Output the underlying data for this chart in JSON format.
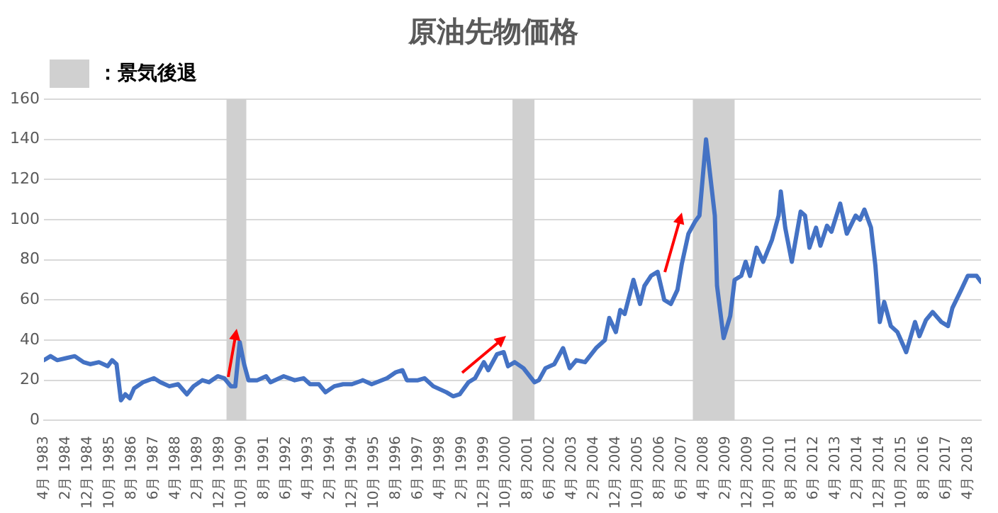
{
  "chart_data": {
    "type": "line",
    "title": "原油先物価格",
    "x": [
      "1983-04",
      "1983-07",
      "1983-10",
      "1984-02",
      "1984-06",
      "1984-10",
      "1985-01",
      "1985-05",
      "1985-09",
      "1985-11",
      "1986-01",
      "1986-03",
      "1986-05",
      "1986-07",
      "1986-09",
      "1987-01",
      "1987-06",
      "1987-09",
      "1988-01",
      "1988-05",
      "1988-09",
      "1988-12",
      "1989-04",
      "1989-07",
      "1989-11",
      "1990-02",
      "1990-05",
      "1990-07",
      "1990-09",
      "1990-11",
      "1991-01",
      "1991-05",
      "1991-09",
      "1991-11",
      "1992-05",
      "1992-10",
      "1993-02",
      "1993-05",
      "1993-09",
      "1993-12",
      "1994-04",
      "1994-08",
      "1994-12",
      "1995-05",
      "1995-09",
      "1996-04",
      "1996-08",
      "1996-11",
      "1997-01",
      "1997-06",
      "1997-09",
      "1998-01",
      "1998-07",
      "1998-10",
      "1999-01",
      "1999-05",
      "1999-08",
      "1999-12",
      "2000-02",
      "2000-06",
      "2000-09",
      "2000-11",
      "2001-02",
      "2001-06",
      "2001-11",
      "2002-01",
      "2002-04",
      "2002-08",
      "2002-12",
      "2003-03",
      "2003-06",
      "2003-10",
      "2004-03",
      "2004-07",
      "2004-09",
      "2004-12",
      "2005-02",
      "2005-04",
      "2005-08",
      "2005-11",
      "2006-01",
      "2006-04",
      "2006-07",
      "2006-10",
      "2007-01",
      "2007-04",
      "2007-06",
      "2007-09",
      "2007-12",
      "2008-02",
      "2008-05",
      "2008-09",
      "2008-10",
      "2009-01",
      "2009-04",
      "2009-06",
      "2009-09",
      "2009-11",
      "2010-01",
      "2010-04",
      "2010-07",
      "2010-11",
      "2011-02",
      "2011-03",
      "2011-05",
      "2011-08",
      "2011-12",
      "2012-02",
      "2012-04",
      "2012-07",
      "2012-09",
      "2012-12",
      "2013-02",
      "2013-06",
      "2013-09",
      "2014-01",
      "2014-03",
      "2014-05",
      "2014-08",
      "2014-10",
      "2014-12",
      "2015-02",
      "2015-05",
      "2015-08",
      "2015-12",
      "2016-04",
      "2016-06",
      "2016-09",
      "2016-12",
      "2017-04",
      "2017-07",
      "2017-09",
      "2018-01",
      "2018-04",
      "2018-06",
      "2018-08",
      "2018-10"
    ],
    "series": [
      {
        "color": "#4472c4",
        "values": [
          30,
          32,
          30,
          31,
          32,
          29,
          28,
          29,
          27,
          30,
          28,
          10,
          13,
          11,
          16,
          19,
          21,
          19,
          17,
          18,
          13,
          17,
          20,
          19,
          22,
          21,
          17,
          17,
          39,
          28,
          20,
          20,
          22,
          19,
          22,
          20,
          21,
          18,
          18,
          14,
          17,
          18,
          18,
          20,
          18,
          21,
          24,
          25,
          20,
          20,
          21,
          17,
          14,
          12,
          13,
          19,
          21,
          29,
          25,
          33,
          34,
          27,
          29,
          26,
          19,
          20,
          26,
          28,
          36,
          26,
          30,
          29,
          36,
          40,
          51,
          44,
          55,
          53,
          70,
          58,
          67,
          72,
          74,
          60,
          58,
          65,
          78,
          93,
          99,
          102,
          140,
          102,
          67,
          41,
          52,
          70,
          72,
          79,
          72,
          86,
          79,
          90,
          102,
          114,
          96,
          79,
          104,
          102,
          86,
          96,
          87,
          97,
          94,
          108,
          93,
          102,
          100,
          105,
          96,
          77,
          49,
          59,
          47,
          44,
          34,
          49,
          42,
          50,
          54,
          49,
          47,
          56,
          65,
          72,
          72,
          72,
          69
        ]
      }
    ],
    "xlim": [
      "1983-04",
      "2018-10"
    ],
    "xticks": [
      {
        "value": "1983-04",
        "label": "4月 1983"
      },
      {
        "value": "1984-02",
        "label": "2月 1984"
      },
      {
        "value": "1984-12",
        "label": "12月 1984"
      },
      {
        "value": "1985-10",
        "label": "10月 1985"
      },
      {
        "value": "1986-08",
        "label": "8月 1986"
      },
      {
        "value": "1987-06",
        "label": "6月 1987"
      },
      {
        "value": "1988-04",
        "label": "4月 1988"
      },
      {
        "value": "1989-02",
        "label": "2月 1989"
      },
      {
        "value": "1989-12",
        "label": "12月 1989"
      },
      {
        "value": "1990-10",
        "label": "10月 1990"
      },
      {
        "value": "1991-08",
        "label": "8月 1991"
      },
      {
        "value": "1992-06",
        "label": "6月 1992"
      },
      {
        "value": "1993-04",
        "label": "4月 1993"
      },
      {
        "value": "1994-02",
        "label": "2月 1994"
      },
      {
        "value": "1994-12",
        "label": "12月 1994"
      },
      {
        "value": "1995-10",
        "label": "10月 1995"
      },
      {
        "value": "1996-08",
        "label": "8月 1996"
      },
      {
        "value": "1997-06",
        "label": "6月 1997"
      },
      {
        "value": "1998-04",
        "label": "4月 1998"
      },
      {
        "value": "1999-02",
        "label": "2月 1999"
      },
      {
        "value": "1999-12",
        "label": "12月 1999"
      },
      {
        "value": "2000-10",
        "label": "10月 2000"
      },
      {
        "value": "2001-08",
        "label": "8月 2001"
      },
      {
        "value": "2002-06",
        "label": "6月 2002"
      },
      {
        "value": "2003-04",
        "label": "4月 2003"
      },
      {
        "value": "2004-02",
        "label": "2月 2004"
      },
      {
        "value": "2004-12",
        "label": "12月 2004"
      },
      {
        "value": "2005-10",
        "label": "10月 2005"
      },
      {
        "value": "2006-08",
        "label": "8月 2006"
      },
      {
        "value": "2007-06",
        "label": "6月 2007"
      },
      {
        "value": "2008-04",
        "label": "4月 2008"
      },
      {
        "value": "2009-02",
        "label": "2月 2009"
      },
      {
        "value": "2009-12",
        "label": "12月 2009"
      },
      {
        "value": "2010-10",
        "label": "10月 2010"
      },
      {
        "value": "2011-08",
        "label": "8月 2011"
      },
      {
        "value": "2012-06",
        "label": "6月 2012"
      },
      {
        "value": "2013-04",
        "label": "4月 2013"
      },
      {
        "value": "2014-02",
        "label": "2月 2014"
      },
      {
        "value": "2014-12",
        "label": "12月 2014"
      },
      {
        "value": "2015-10",
        "label": "10月 2015"
      },
      {
        "value": "2016-08",
        "label": "8月 2016"
      },
      {
        "value": "2017-06",
        "label": "6月 2017"
      },
      {
        "value": "2018-04",
        "label": "4月 2018"
      }
    ],
    "ylim": [
      0,
      160
    ],
    "yticks": [
      0,
      20,
      40,
      60,
      80,
      100,
      120,
      140,
      160
    ],
    "bands": [
      {
        "axis": "x",
        "from": "1990-03",
        "to": "1990-12",
        "color": "#d0d0d0",
        "label": "：景気後退"
      },
      {
        "axis": "x",
        "from": "2001-01",
        "to": "2001-11",
        "color": "#d0d0d0"
      },
      {
        "axis": "x",
        "from": "2007-11",
        "to": "2009-06",
        "color": "#d0d0d0"
      }
    ],
    "grid": "y",
    "legend": "top left",
    "marker": "none",
    "line_style": "solid"
  }
}
